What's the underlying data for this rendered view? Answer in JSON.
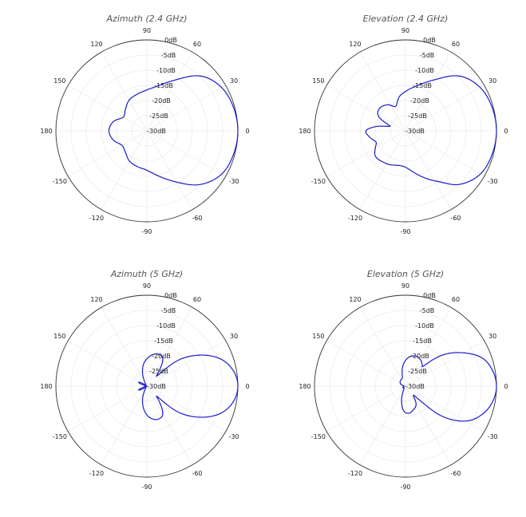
{
  "colors": {
    "trace": "#1a1acc",
    "outer_circle": "#333333",
    "grid": "#cccccc",
    "title": "#555555"
  },
  "chart_data": [
    {
      "type": "polar",
      "title": "Azimuth (2.4 GHz)",
      "angle_ticks": [
        "0",
        "30",
        "60",
        "90",
        "120",
        "150",
        "180",
        "-150",
        "-120",
        "-90",
        "-60",
        "-30"
      ],
      "radial_ticks": [
        "0dB",
        "-5dB",
        "-10dB",
        "-15dB",
        "-20dB",
        "-25dB",
        "-30dB"
      ],
      "rlim_db": [
        -30,
        0
      ],
      "grid": true,
      "series": [
        {
          "angle_deg": [
            0,
            15,
            30,
            45,
            60,
            75,
            90,
            105,
            120,
            135,
            150,
            165,
            180,
            195,
            210,
            225,
            240,
            255,
            270,
            285,
            300,
            315,
            330,
            345
          ],
          "gain_db": [
            0,
            -0.4,
            -1.5,
            -4.5,
            -10.5,
            -14.5,
            -16.5,
            -17.5,
            -18.3,
            -20,
            -21,
            -18.5,
            -17.5,
            -18.5,
            -20.5,
            -20,
            -18.5,
            -17.8,
            -17,
            -14.5,
            -10.5,
            -5,
            -1.5,
            -0.4
          ]
        }
      ]
    },
    {
      "type": "polar",
      "title": "Elevation (2.4 GHz)",
      "angle_ticks": [
        "0",
        "30",
        "60",
        "90",
        "120",
        "150",
        "180",
        "-150",
        "-120",
        "-90",
        "-60",
        "-30"
      ],
      "radial_ticks": [
        "0dB",
        "-5dB",
        "-10dB",
        "-15dB",
        "-20dB",
        "-25dB",
        "-30dB"
      ],
      "rlim_db": [
        -30,
        0
      ],
      "grid": true,
      "series": [
        {
          "angle_deg": [
            0,
            15,
            30,
            45,
            60,
            75,
            90,
            100,
            112,
            125,
            140,
            152,
            163,
            172,
            180,
            190,
            201,
            210,
            221,
            240,
            270,
            300,
            315,
            330,
            345
          ],
          "gain_db": [
            0,
            -0.4,
            -1.5,
            -4.5,
            -10.5,
            -14.5,
            -17,
            -18.5,
            -21.3,
            -19.5,
            -18.7,
            -20,
            -24.7,
            -20,
            -17,
            -18,
            -19.6,
            -18.5,
            -17,
            -17.5,
            -18,
            -11,
            -5,
            -1.5,
            -0.4
          ]
        }
      ]
    },
    {
      "type": "polar",
      "title": "Azimuth (5 GHz)",
      "angle_ticks": [
        "0",
        "30",
        "60",
        "90",
        "120",
        "150",
        "180",
        "-150",
        "-120",
        "-90",
        "-60",
        "-30"
      ],
      "radial_ticks": [
        "0dB",
        "-5dB",
        "-10dB",
        "-15dB",
        "-20dB",
        "-25dB",
        "-30dB"
      ],
      "rlim_db": [
        -30,
        0
      ],
      "grid": true,
      "series": [
        {
          "angle_deg": [
            0,
            10,
            20,
            30,
            40,
            45,
            50,
            60,
            70,
            80,
            90,
            100,
            110,
            120,
            140,
            155,
            165,
            180,
            195,
            205,
            220,
            240,
            250,
            260,
            270,
            280,
            290,
            300,
            310,
            315,
            320,
            330,
            340,
            350
          ],
          "gain_db": [
            0,
            -1,
            -4,
            -9.5,
            -17,
            -25,
            -24,
            -19.5,
            -18.8,
            -19.5,
            -21,
            -23,
            -26,
            -29,
            -29.5,
            -27,
            -29.5,
            -30,
            -29.5,
            -27,
            -29.5,
            -29,
            -26,
            -23,
            -20.5,
            -19,
            -18.5,
            -19.5,
            -24,
            -25,
            -17,
            -9.5,
            -4,
            -1
          ]
        }
      ]
    },
    {
      "type": "polar",
      "title": "Elevation (5 GHz)",
      "angle_ticks": [
        "0",
        "30",
        "60",
        "90",
        "120",
        "150",
        "180",
        "-150",
        "-120",
        "-90",
        "-60",
        "-30"
      ],
      "radial_ticks": [
        "0dB",
        "-5dB",
        "-10dB",
        "-15dB",
        "-20dB",
        "-25dB",
        "-30dB"
      ],
      "rlim_db": [
        -30,
        0
      ],
      "grid": true,
      "series": [
        {
          "angle_deg": [
            0,
            10,
            20,
            30,
            40,
            48,
            52,
            60,
            70,
            80,
            90,
            100,
            110,
            130,
            150,
            175,
            185,
            210,
            240,
            255,
            265,
            275,
            285,
            300,
            310,
            315,
            320,
            330,
            340,
            350
          ],
          "gain_db": [
            0,
            -0.8,
            -3,
            -8,
            -14,
            -21,
            -21,
            -20,
            -19.5,
            -20,
            -21.5,
            -24,
            -27,
            -27.5,
            -28,
            -29.5,
            -29.5,
            -29,
            -29,
            -25,
            -22,
            -21,
            -21.5,
            -23,
            -26,
            -24,
            -15,
            -7,
            -3,
            -0.8
          ]
        }
      ]
    }
  ]
}
